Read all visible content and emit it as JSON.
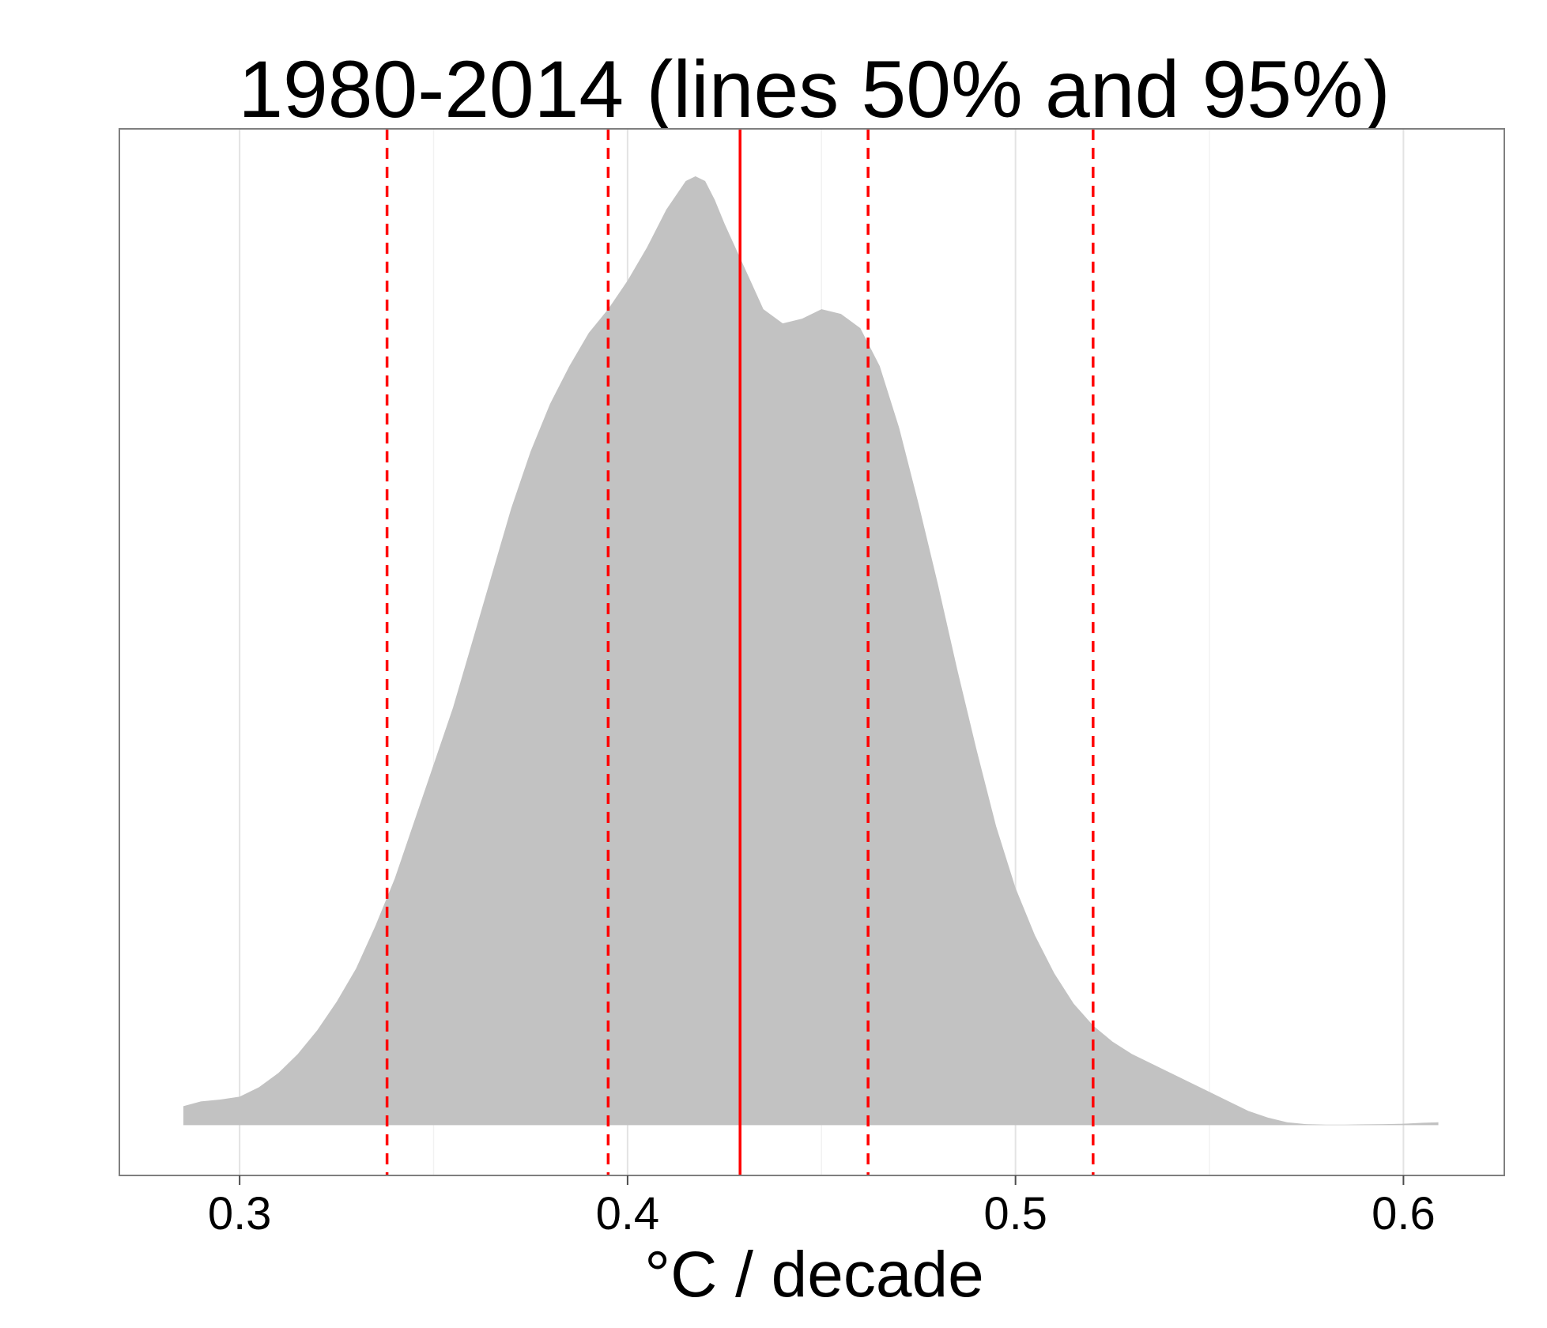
{
  "chart_data": {
    "type": "area",
    "title": "1980-2014 (lines 50% and 95%)",
    "xlabel": "°C / decade",
    "ylabel": "",
    "xlim": [
      0.269,
      0.626
    ],
    "ylim": [
      -0.053,
      1.05
    ],
    "x_ticks": [
      {
        "value": 0.3,
        "label": "0.3"
      },
      {
        "value": 0.4,
        "label": "0.4"
      },
      {
        "value": 0.5,
        "label": "0.5"
      },
      {
        "value": 0.6,
        "label": "0.6"
      }
    ],
    "minor_gridlines_x": [
      0.35,
      0.45,
      0.55
    ],
    "y_ticks_visible": false,
    "grid": true,
    "density_fill_color": "#c2c2c2",
    "line_color": "#ff0000",
    "density": {
      "x": [
        0.2855,
        0.29,
        0.295,
        0.3,
        0.305,
        0.31,
        0.315,
        0.32,
        0.325,
        0.33,
        0.335,
        0.34,
        0.345,
        0.35,
        0.355,
        0.36,
        0.365,
        0.37,
        0.375,
        0.38,
        0.385,
        0.39,
        0.395,
        0.4,
        0.405,
        0.41,
        0.415,
        0.4175,
        0.42,
        0.4225,
        0.425,
        0.43,
        0.435,
        0.44,
        0.445,
        0.45,
        0.455,
        0.46,
        0.465,
        0.47,
        0.475,
        0.48,
        0.485,
        0.49,
        0.495,
        0.5,
        0.505,
        0.51,
        0.515,
        0.52,
        0.525,
        0.53,
        0.535,
        0.54,
        0.545,
        0.55,
        0.555,
        0.56,
        0.565,
        0.57,
        0.575,
        0.58,
        0.585,
        0.59,
        0.595,
        0.6,
        0.605,
        0.609
      ],
      "y": [
        0.02,
        0.025,
        0.027,
        0.03,
        0.04,
        0.055,
        0.075,
        0.1,
        0.13,
        0.165,
        0.21,
        0.26,
        0.32,
        0.38,
        0.44,
        0.51,
        0.58,
        0.65,
        0.71,
        0.76,
        0.8,
        0.835,
        0.86,
        0.89,
        0.925,
        0.965,
        0.995,
        1.0,
        0.995,
        0.975,
        0.95,
        0.905,
        0.86,
        0.845,
        0.85,
        0.86,
        0.855,
        0.84,
        0.8,
        0.735,
        0.655,
        0.57,
        0.48,
        0.395,
        0.315,
        0.25,
        0.2,
        0.16,
        0.128,
        0.105,
        0.088,
        0.075,
        0.065,
        0.055,
        0.045,
        0.035,
        0.025,
        0.015,
        0.008,
        0.003,
        0.001,
        0.0005,
        0.0005,
        0.0008,
        0.001,
        0.0015,
        0.0025,
        0.003
      ]
    },
    "vertical_lines": [
      {
        "name": "median",
        "value": 0.429,
        "style": "solid"
      },
      {
        "name": "quantile-2.5",
        "value": 0.338,
        "style": "dashed"
      },
      {
        "name": "quantile-25",
        "value": 0.395,
        "style": "dashed"
      },
      {
        "name": "quantile-75",
        "value": 0.462,
        "style": "dashed"
      },
      {
        "name": "quantile-97.5",
        "value": 0.52,
        "style": "dashed"
      }
    ]
  }
}
